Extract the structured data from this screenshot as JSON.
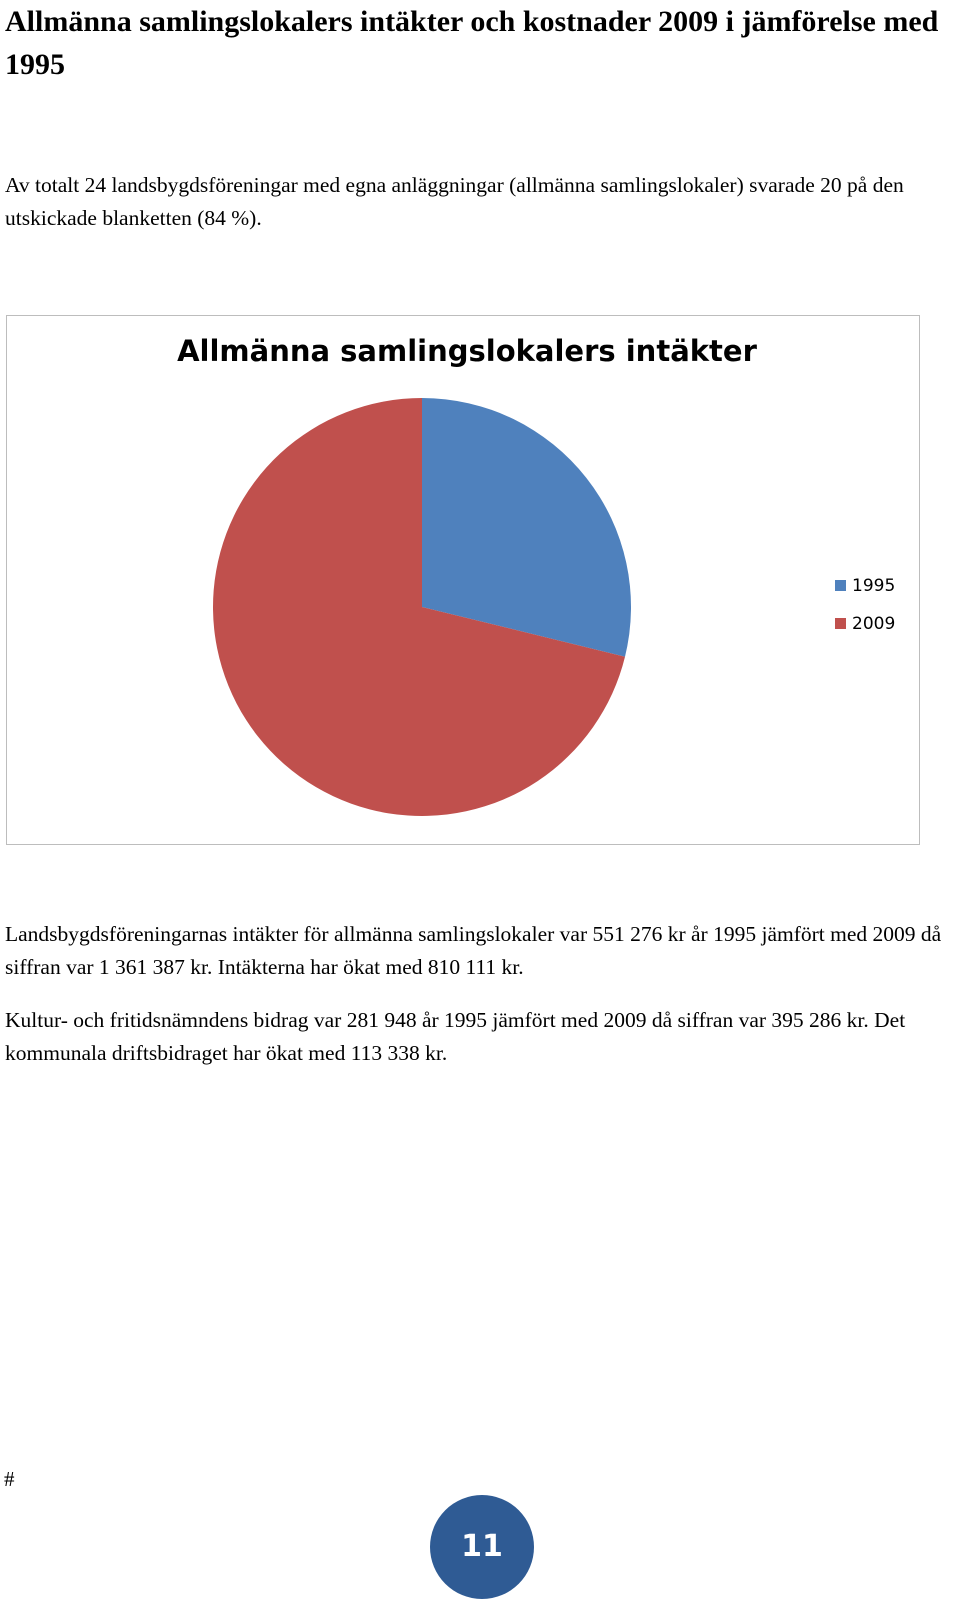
{
  "document": {
    "title": "Allmänna samlingslokalers intäkter och kostnader 2009 i jämförelse med 1995",
    "intro": "Av totalt 24 landsbygdsföreningar med egna anläggningar (allmänna samlingslokaler) svarade 20 på den utskickade blanketten (84 %).",
    "paragraph1": "Landsbygdsföreningarnas intäkter för allmänna samlingslokaler var 551 276 kr år 1995 jämfört med 2009 då siffran var 1 361 387 kr. Intäkterna har ökat med 810 111 kr.",
    "paragraph2": "Kultur- och fritidsnämndens bidrag var 281 948 år 1995 jämfört med 2009 då siffran var 395 286 kr. Det kommunala driftsbidraget har ökat med 113 338 kr.",
    "footer_mark": "#",
    "page_number": "11"
  },
  "chart_data": {
    "type": "pie",
    "title": "Allmänna samlingslokalers intäkter",
    "categories": [
      "1995",
      "2009"
    ],
    "values": [
      551276,
      1361387
    ],
    "colors": [
      "#4f81bd",
      "#c0504d"
    ],
    "legend_position": "right"
  }
}
